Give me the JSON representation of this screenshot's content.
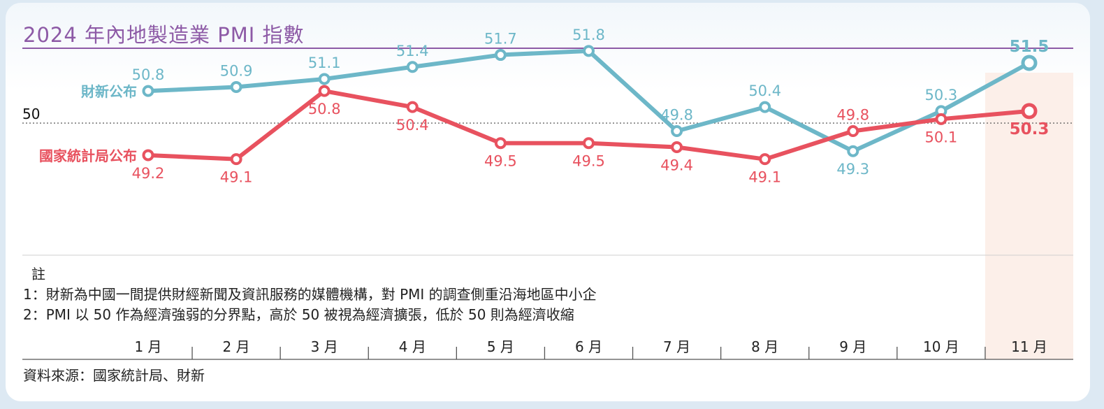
{
  "chart_data": {
    "type": "line",
    "title": "2024 年內地製造業 PMI 指數",
    "categories": [
      "1 月",
      "2 月",
      "3 月",
      "4 月",
      "5 月",
      "6 月",
      "7 月",
      "8 月",
      "9 月",
      "10 月",
      "11 月"
    ],
    "series": [
      {
        "name": "財新公布",
        "color": "#6db7c8",
        "values": [
          50.8,
          50.9,
          51.1,
          51.4,
          51.7,
          51.8,
          49.8,
          50.4,
          49.3,
          50.3,
          51.5
        ]
      },
      {
        "name": "國家統計局公布",
        "color": "#e8525f",
        "values": [
          49.2,
          49.1,
          50.8,
          50.4,
          49.5,
          49.5,
          49.4,
          49.1,
          49.8,
          50.1,
          50.3
        ]
      }
    ],
    "reference_line": {
      "value": 50,
      "label": "50",
      "style": "dotted"
    },
    "ylim": [
      46.2,
      53.0
    ],
    "highlight_category": "11 月",
    "notes": {
      "heading": "註",
      "lines": [
        "1：財新為中國一間提供財經新聞及資訊服務的媒體機構，對 PMI 的調查側重沿海地區中小企",
        "2：PMI 以 50 作為經濟強弱的分界點，高於 50 被視為經濟擴張，低於 50 則為經濟收縮"
      ]
    },
    "source": "資料來源：國家統計局、財新"
  }
}
